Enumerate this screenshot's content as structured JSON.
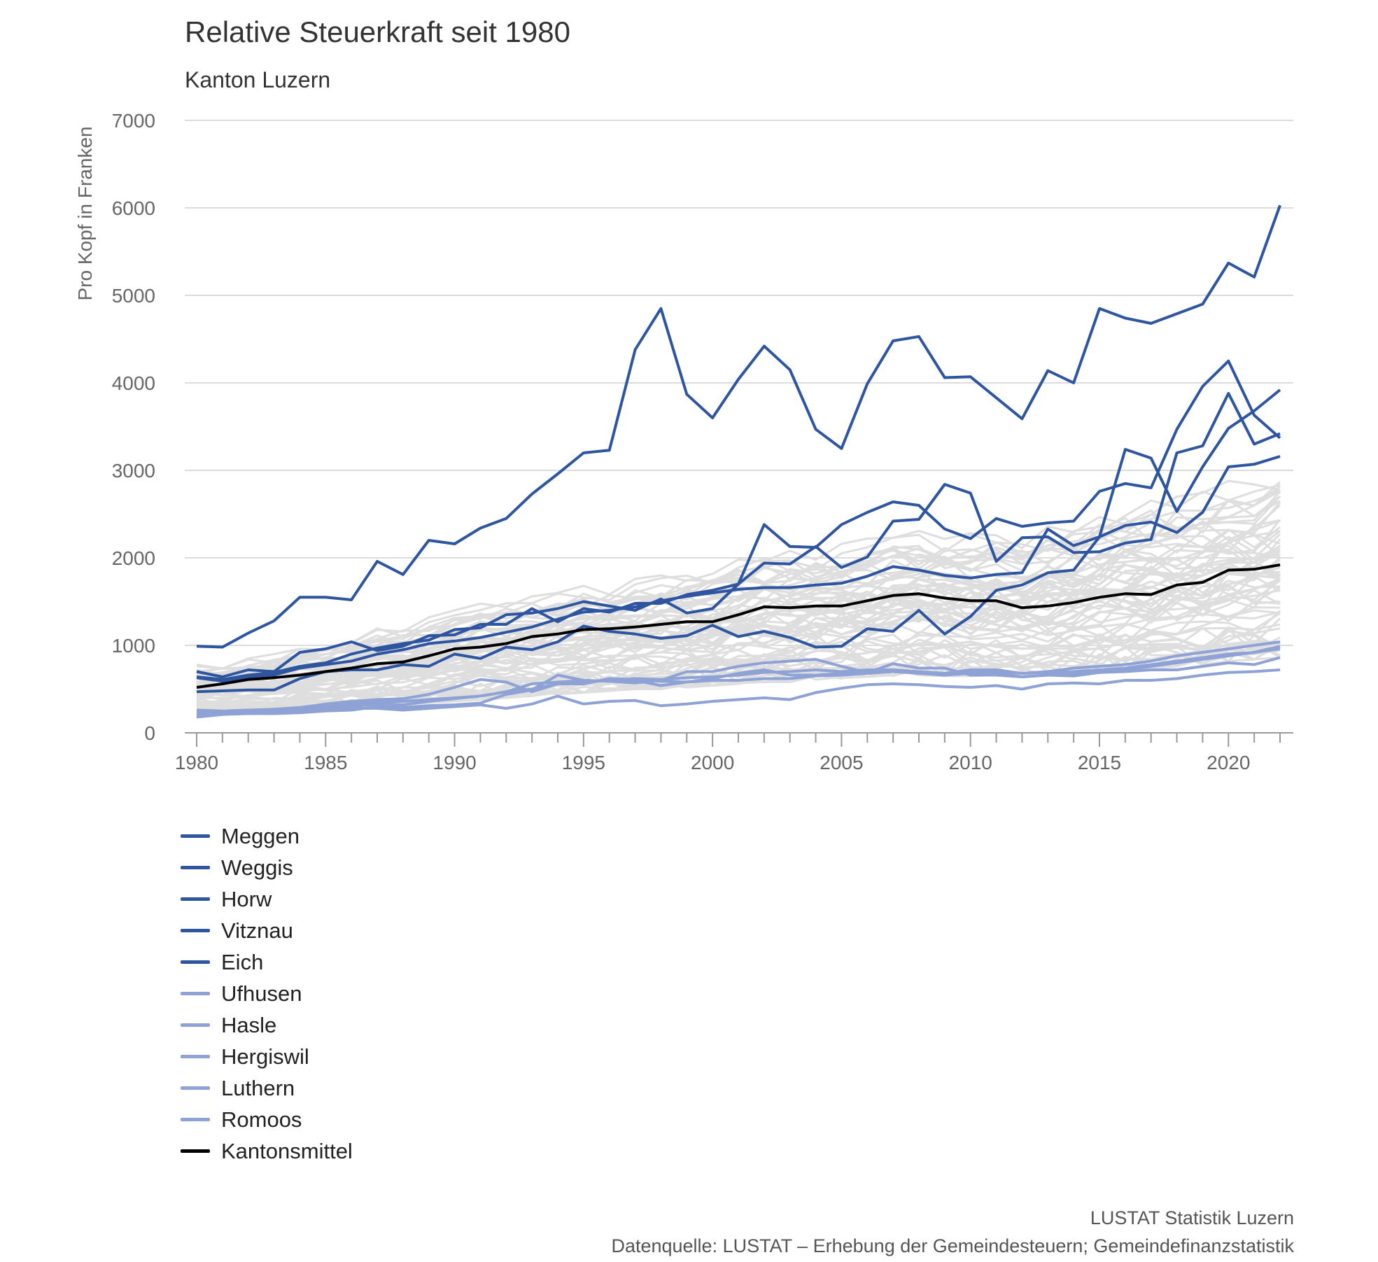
{
  "header": {
    "title": "Relative Steuerkraft seit 1980",
    "subtitle": "Kanton Luzern"
  },
  "footer": {
    "org": "LUSTAT Statistik Luzern",
    "source": "Datenquelle: LUSTAT – Erhebung der Gemeindesteuern; Gemeindefinanzstatistik"
  },
  "colors": {
    "dark_blue": "#2e55a0",
    "light_blue": "#8fa2d6",
    "black": "#000000",
    "grey": "#dedede",
    "grid": "#dcdcdc"
  },
  "chart_data": {
    "type": "line",
    "title": "Relative Steuerkraft seit 1980",
    "subtitle": "Kanton Luzern",
    "xlabel": "",
    "ylabel": "Pro Kopf in Franken",
    "xlim": [
      1980,
      2022
    ],
    "ylim": [
      0,
      7000
    ],
    "yticks": [
      0,
      1000,
      2000,
      3000,
      4000,
      5000,
      6000,
      7000
    ],
    "xticks": [
      1980,
      1985,
      1990,
      1995,
      2000,
      2005,
      2010,
      2015,
      2020
    ],
    "grid": true,
    "legend_position": "bottom-left",
    "x": [
      1980,
      1981,
      1982,
      1983,
      1984,
      1985,
      1986,
      1987,
      1988,
      1989,
      1990,
      1991,
      1992,
      1993,
      1994,
      1995,
      1996,
      1997,
      1998,
      1999,
      2000,
      2001,
      2002,
      2003,
      2004,
      2005,
      2006,
      2007,
      2008,
      2009,
      2010,
      2011,
      2012,
      2013,
      2014,
      2015,
      2016,
      2017,
      2018,
      2019,
      2020,
      2021,
      2022
    ],
    "series": [
      {
        "name": "Meggen",
        "group": "high",
        "values": [
          990,
          980,
          1140,
          1280,
          1550,
          1550,
          1520,
          1960,
          1810,
          2200,
          2160,
          2340,
          2450,
          2730,
          2960,
          3200,
          3230,
          4380,
          4850,
          3870,
          3600,
          4040,
          4420,
          4150,
          3470,
          3250,
          3990,
          4480,
          4530,
          4060,
          4070,
          3830,
          3590,
          4140,
          4000,
          4850,
          4740,
          4680,
          4790,
          4900,
          5370,
          5210,
          6030
        ]
      },
      {
        "name": "Weggis",
        "group": "high",
        "values": [
          700,
          640,
          720,
          700,
          920,
          960,
          1040,
          940,
          990,
          1110,
          1120,
          1240,
          1240,
          1420,
          1270,
          1420,
          1380,
          1480,
          1480,
          1580,
          1630,
          1700,
          2380,
          2130,
          2120,
          2380,
          2520,
          2640,
          2600,
          2330,
          2220,
          2450,
          2360,
          2400,
          2420,
          2760,
          2850,
          2800,
          3470,
          3960,
          4250,
          3630,
          3370
        ]
      },
      {
        "name": "Horw",
        "group": "high",
        "values": [
          640,
          610,
          660,
          690,
          760,
          800,
          900,
          970,
          1020,
          1060,
          1180,
          1200,
          1350,
          1370,
          1420,
          1500,
          1450,
          1400,
          1530,
          1370,
          1420,
          1700,
          1940,
          1930,
          2130,
          1890,
          2010,
          2420,
          2440,
          2840,
          2740,
          1960,
          2230,
          2240,
          2060,
          2070,
          2170,
          2210,
          3200,
          3280,
          3880,
          3300,
          3420
        ]
      },
      {
        "name": "Vitznau",
        "group": "high",
        "values": [
          630,
          590,
          640,
          660,
          740,
          780,
          820,
          900,
          950,
          1020,
          1050,
          1090,
          1150,
          1210,
          1300,
          1380,
          1400,
          1440,
          1510,
          1560,
          1600,
          1640,
          1660,
          1660,
          1690,
          1710,
          1790,
          1900,
          1860,
          1800,
          1770,
          1810,
          1830,
          2330,
          2140,
          2240,
          2370,
          2410,
          2290,
          2520,
          3040,
          3070,
          3160
        ]
      },
      {
        "name": "Eich",
        "group": "high",
        "values": [
          470,
          480,
          490,
          490,
          620,
          700,
          720,
          720,
          780,
          760,
          900,
          850,
          980,
          950,
          1040,
          1220,
          1160,
          1130,
          1080,
          1110,
          1230,
          1100,
          1160,
          1090,
          980,
          990,
          1190,
          1160,
          1400,
          1130,
          1330,
          1630,
          1690,
          1830,
          1860,
          2240,
          3240,
          3140,
          2530,
          3040,
          3480,
          3680,
          3920
        ]
      },
      {
        "name": "Ufhusen",
        "group": "low",
        "values": [
          190,
          220,
          240,
          230,
          240,
          270,
          280,
          280,
          260,
          280,
          300,
          320,
          280,
          330,
          420,
          330,
          360,
          370,
          310,
          330,
          360,
          380,
          400,
          380,
          460,
          510,
          550,
          560,
          550,
          530,
          520,
          540,
          500,
          560,
          570,
          560,
          600,
          600,
          620,
          660,
          690,
          700,
          720
        ]
      },
      {
        "name": "Hasle",
        "group": "low",
        "values": [
          260,
          250,
          260,
          270,
          290,
          330,
          360,
          380,
          390,
          440,
          520,
          610,
          580,
          470,
          560,
          580,
          600,
          620,
          610,
          630,
          640,
          660,
          690,
          700,
          720,
          700,
          720,
          720,
          700,
          680,
          720,
          720,
          680,
          700,
          740,
          760,
          780,
          820,
          880,
          920,
          960,
          1000,
          1040
        ]
      },
      {
        "name": "Hergiswil",
        "group": "low",
        "values": [
          230,
          240,
          250,
          260,
          270,
          300,
          330,
          350,
          360,
          380,
          400,
          420,
          470,
          500,
          560,
          560,
          620,
          610,
          590,
          580,
          620,
          680,
          720,
          660,
          660,
          680,
          700,
          700,
          700,
          680,
          700,
          700,
          680,
          690,
          700,
          720,
          740,
          780,
          820,
          860,
          900,
          920,
          960
        ]
      },
      {
        "name": "Luthern",
        "group": "low",
        "values": [
          210,
          230,
          240,
          250,
          250,
          280,
          300,
          330,
          320,
          360,
          390,
          420,
          470,
          560,
          580,
          600,
          590,
          600,
          540,
          580,
          600,
          600,
          620,
          620,
          650,
          660,
          680,
          700,
          680,
          660,
          680,
          680,
          640,
          660,
          680,
          690,
          720,
          760,
          800,
          840,
          880,
          920,
          990
        ]
      },
      {
        "name": "Romoos",
        "group": "low",
        "values": [
          180,
          210,
          220,
          220,
          230,
          250,
          260,
          300,
          290,
          310,
          320,
          340,
          440,
          490,
          660,
          600,
          590,
          570,
          600,
          700,
          700,
          760,
          800,
          820,
          840,
          760,
          690,
          790,
          740,
          740,
          660,
          660,
          640,
          660,
          650,
          690,
          700,
          720,
          720,
          760,
          800,
          780,
          860
        ]
      },
      {
        "name": "Kantonsmittel",
        "group": "mean",
        "values": [
          520,
          560,
          610,
          630,
          660,
          700,
          740,
          790,
          810,
          880,
          960,
          980,
          1020,
          1100,
          1130,
          1180,
          1190,
          1210,
          1240,
          1270,
          1270,
          1350,
          1440,
          1430,
          1450,
          1450,
          1510,
          1570,
          1590,
          1540,
          1510,
          1510,
          1430,
          1450,
          1490,
          1550,
          1590,
          1580,
          1690,
          1720,
          1860,
          1870,
          1920
        ]
      }
    ],
    "background_series_count": 70,
    "background_envelope": {
      "low": [
        200,
        210,
        230,
        240,
        260,
        280,
        300,
        310,
        320,
        340,
        360,
        380,
        400,
        420,
        440,
        460,
        480,
        500,
        500,
        520,
        540,
        560,
        580,
        580,
        600,
        620,
        640,
        650,
        660,
        650,
        650,
        660,
        640,
        660,
        680,
        700,
        720,
        740,
        760,
        780,
        820,
        840,
        860
      ],
      "high": [
        780,
        800,
        850,
        900,
        960,
        1020,
        1080,
        1200,
        1220,
        1320,
        1400,
        1480,
        1520,
        1560,
        1600,
        1680,
        1700,
        1760,
        1800,
        1860,
        1880,
        1980,
        2060,
        2080,
        2100,
        2160,
        2220,
        2300,
        2340,
        2300,
        2280,
        2300,
        2260,
        2360,
        2420,
        2520,
        2600,
        2660,
        2700,
        2760,
        2880,
        2860,
        3000
      ]
    }
  }
}
